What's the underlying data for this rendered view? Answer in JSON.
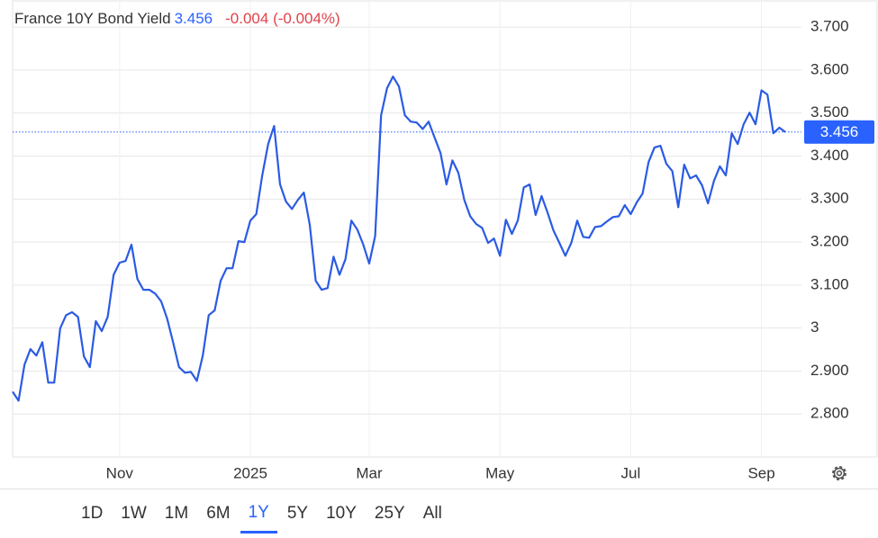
{
  "chart_data": {
    "type": "line",
    "title": "France 10Y Bond Yield",
    "last": 3.456,
    "change": "-0.004 (-0.004%)",
    "categories": [
      null,
      null,
      null,
      null,
      null,
      null,
      null,
      null,
      null,
      null,
      null,
      null,
      null,
      null,
      null,
      null,
      null,
      null,
      "Nov",
      null,
      null,
      null,
      null,
      null,
      null,
      null,
      null,
      null,
      null,
      null,
      null,
      null,
      null,
      null,
      null,
      null,
      null,
      null,
      null,
      null,
      "2025",
      null,
      null,
      null,
      null,
      null,
      null,
      null,
      null,
      null,
      null,
      null,
      null,
      null,
      null,
      null,
      null,
      null,
      null,
      null,
      "Mar",
      null,
      null,
      null,
      null,
      null,
      null,
      null,
      null,
      null,
      null,
      null,
      null,
      null,
      null,
      null,
      null,
      null,
      null,
      null,
      null,
      null,
      "May",
      null,
      null,
      null,
      null,
      null,
      null,
      null,
      null,
      null,
      null,
      null,
      null,
      null,
      null,
      null,
      null,
      null,
      null,
      null,
      null,
      null,
      "Jul",
      null,
      null,
      null,
      null,
      null,
      null,
      null,
      null,
      null,
      null,
      null,
      null,
      null,
      null,
      null,
      null,
      null,
      null,
      null,
      null,
      null,
      "Sep",
      null,
      null,
      null,
      null
    ],
    "series": [
      {
        "name": "France 10Y Bond Yield",
        "color": "#2b5be3",
        "values": [
          2.852,
          2.831,
          2.915,
          2.951,
          2.936,
          2.967,
          2.873,
          2.873,
          2.999,
          3.03,
          3.037,
          3.026,
          2.934,
          2.909,
          3.016,
          2.993,
          3.026,
          3.124,
          3.152,
          3.156,
          3.194,
          3.114,
          3.089,
          3.089,
          3.08,
          3.062,
          3.022,
          2.967,
          2.909,
          2.896,
          2.898,
          2.877,
          2.936,
          3.03,
          3.041,
          3.11,
          3.139,
          3.139,
          3.202,
          3.2,
          3.25,
          3.265,
          3.355,
          3.428,
          3.47,
          3.334,
          3.294,
          3.277,
          3.298,
          3.315,
          3.24,
          3.11,
          3.089,
          3.093,
          3.166,
          3.124,
          3.16,
          3.25,
          3.229,
          3.194,
          3.15,
          3.214,
          3.495,
          3.558,
          3.585,
          3.562,
          3.495,
          3.48,
          3.478,
          3.463,
          3.48,
          3.443,
          3.407,
          3.334,
          3.39,
          3.361,
          3.298,
          3.26,
          3.242,
          3.233,
          3.198,
          3.208,
          3.168,
          3.252,
          3.219,
          3.25,
          3.327,
          3.334,
          3.263,
          3.307,
          3.269,
          3.227,
          3.198,
          3.168,
          3.198,
          3.25,
          3.212,
          3.21,
          3.235,
          3.237,
          3.248,
          3.258,
          3.26,
          3.286,
          3.265,
          3.292,
          3.313,
          3.386,
          3.42,
          3.424,
          3.382,
          3.365,
          3.281,
          3.38,
          3.348,
          3.355,
          3.332,
          3.29,
          3.342,
          3.376,
          3.355,
          3.453,
          3.428,
          3.474,
          3.501,
          3.474,
          3.553,
          3.543,
          3.453,
          3.466,
          3.456
        ]
      }
    ],
    "ylim": [
      2.7,
      3.763
    ],
    "yticks": [
      {
        "value": 2.8,
        "label": "2.800"
      },
      {
        "value": 2.9,
        "label": "2.900"
      },
      3,
      {
        "value": 3.1,
        "label": "3.100"
      },
      {
        "value": 3.2,
        "label": "3.200"
      },
      {
        "value": 3.3,
        "label": "3.300"
      },
      {
        "value": 3.4,
        "label": "3.400"
      },
      {
        "value": 3.5,
        "label": "3.500"
      },
      {
        "value": 3.6,
        "label": "3.600"
      },
      {
        "value": 3.7,
        "label": "3.700"
      }
    ],
    "grid": true,
    "ranges": [
      "1D",
      "1W",
      "1M",
      "6M",
      "1Y",
      "5Y",
      "10Y",
      "25Y",
      "All"
    ],
    "selected_range": "1Y"
  }
}
